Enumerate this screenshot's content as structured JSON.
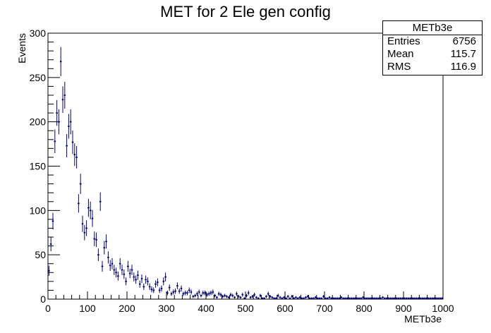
{
  "chart_data": {
    "type": "scatter",
    "title": "MET for 2 Ele gen config",
    "xlabel": "METb3e",
    "ylabel": "Events",
    "xlim": [
      0,
      1000
    ],
    "ylim": [
      0,
      300
    ],
    "x_ticks": [
      0,
      100,
      200,
      300,
      400,
      500,
      600,
      700,
      800,
      900,
      1000
    ],
    "y_ticks": [
      0,
      50,
      100,
      150,
      200,
      250,
      300
    ],
    "grid": false,
    "legend": "none",
    "marker_color": "#000080",
    "stats_box": {
      "name": "METb3e",
      "entries_label": "Entries",
      "entries": "6756",
      "mean_label": "Mean",
      "mean": "115.7",
      "rms_label": "RMS",
      "rms": "116.9"
    },
    "bin_width": 5,
    "x": [
      2.5,
      7.5,
      12.5,
      17.5,
      22.5,
      27.5,
      32.5,
      37.5,
      42.5,
      47.5,
      52.5,
      57.5,
      62.5,
      67.5,
      72.5,
      77.5,
      82.5,
      87.5,
      92.5,
      97.5,
      102.5,
      107.5,
      112.5,
      117.5,
      122.5,
      127.5,
      132.5,
      137.5,
      142.5,
      147.5,
      152.5,
      157.5,
      162.5,
      167.5,
      172.5,
      177.5,
      182.5,
      187.5,
      192.5,
      197.5,
      202.5,
      207.5,
      212.5,
      217.5,
      222.5,
      227.5,
      232.5,
      237.5,
      242.5,
      247.5,
      252.5,
      257.5,
      262.5,
      267.5,
      272.5,
      277.5,
      282.5,
      287.5,
      292.5,
      297.5,
      302.5,
      307.5,
      312.5,
      317.5,
      322.5,
      327.5,
      332.5,
      337.5,
      342.5,
      347.5,
      352.5,
      357.5,
      362.5,
      367.5,
      372.5,
      377.5,
      382.5,
      387.5,
      392.5,
      397.5,
      402.5,
      407.5,
      412.5,
      417.5,
      422.5,
      427.5,
      432.5,
      437.5,
      442.5,
      447.5,
      452.5,
      457.5,
      462.5,
      467.5,
      472.5,
      477.5,
      482.5,
      487.5,
      492.5,
      497.5,
      502.5,
      507.5,
      512.5,
      517.5,
      522.5,
      527.5,
      532.5,
      537.5,
      542.5,
      547.5,
      552.5,
      557.5,
      562.5,
      567.5,
      572.5,
      577.5,
      582.5,
      587.5,
      592.5,
      597.5,
      602.5,
      607.5,
      612.5,
      617.5,
      622.5,
      627.5,
      632.5,
      637.5,
      642.5,
      647.5,
      652.5,
      657.5,
      662.5,
      667.5,
      672.5,
      677.5,
      682.5,
      687.5,
      692.5,
      697.5,
      702.5,
      707.5,
      712.5,
      717.5,
      722.5,
      727.5,
      732.5,
      737.5,
      742.5,
      747.5,
      752.5,
      757.5,
      762.5,
      767.5,
      772.5,
      777.5,
      782.5,
      787.5,
      792.5,
      797.5,
      802.5,
      807.5,
      812.5,
      817.5,
      822.5,
      827.5,
      832.5,
      837.5,
      842.5,
      847.5,
      852.5,
      857.5,
      862.5,
      867.5,
      872.5,
      877.5,
      882.5,
      887.5,
      892.5,
      897.5,
      902.5,
      907.5,
      912.5,
      917.5,
      922.5,
      927.5,
      932.5,
      937.5,
      942.5,
      947.5,
      952.5,
      957.5,
      962.5,
      967.5,
      972.5,
      977.5,
      982.5,
      987.5,
      992.5,
      997.5
    ],
    "values": [
      32,
      62,
      88,
      178,
      210,
      200,
      268,
      225,
      230,
      173,
      195,
      200,
      177,
      163,
      160,
      108,
      130,
      85,
      75,
      80,
      103,
      100,
      91,
      68,
      67,
      50,
      110,
      37,
      58,
      65,
      47,
      38,
      40,
      33,
      30,
      26,
      40,
      33,
      28,
      20,
      37,
      29,
      33,
      25,
      22,
      27,
      17,
      23,
      14,
      22,
      20,
      14,
      11,
      10,
      17,
      19,
      10,
      12,
      20,
      25,
      7,
      13,
      6,
      8,
      9,
      15,
      9,
      12,
      6,
      7,
      7,
      10,
      8,
      3,
      4,
      6,
      8,
      4,
      7,
      7,
      5,
      6,
      7,
      8,
      4,
      2,
      6,
      5,
      3,
      4,
      3,
      2,
      5,
      4,
      2,
      6,
      3,
      2,
      5,
      1,
      4,
      7,
      2,
      3,
      5,
      2,
      1,
      4,
      1,
      1,
      3,
      6,
      3,
      2,
      1,
      1,
      4,
      2,
      1,
      2,
      1,
      3,
      1,
      3,
      1,
      2,
      1,
      2,
      1,
      1,
      2,
      3,
      1,
      1,
      1,
      2,
      1,
      1,
      1,
      3,
      1,
      1,
      2,
      1,
      1,
      1,
      1,
      1,
      2,
      1,
      1,
      1,
      1,
      1,
      1,
      1,
      1,
      1,
      1,
      2,
      1,
      1,
      1,
      1,
      1,
      1,
      1,
      1,
      1,
      2,
      1,
      1,
      1,
      1,
      1,
      1,
      1,
      1,
      1,
      1,
      1,
      1,
      1,
      1,
      1,
      1,
      1,
      1,
      1,
      1,
      1,
      1,
      1,
      1,
      1,
      1,
      1,
      1,
      1,
      1
    ]
  }
}
